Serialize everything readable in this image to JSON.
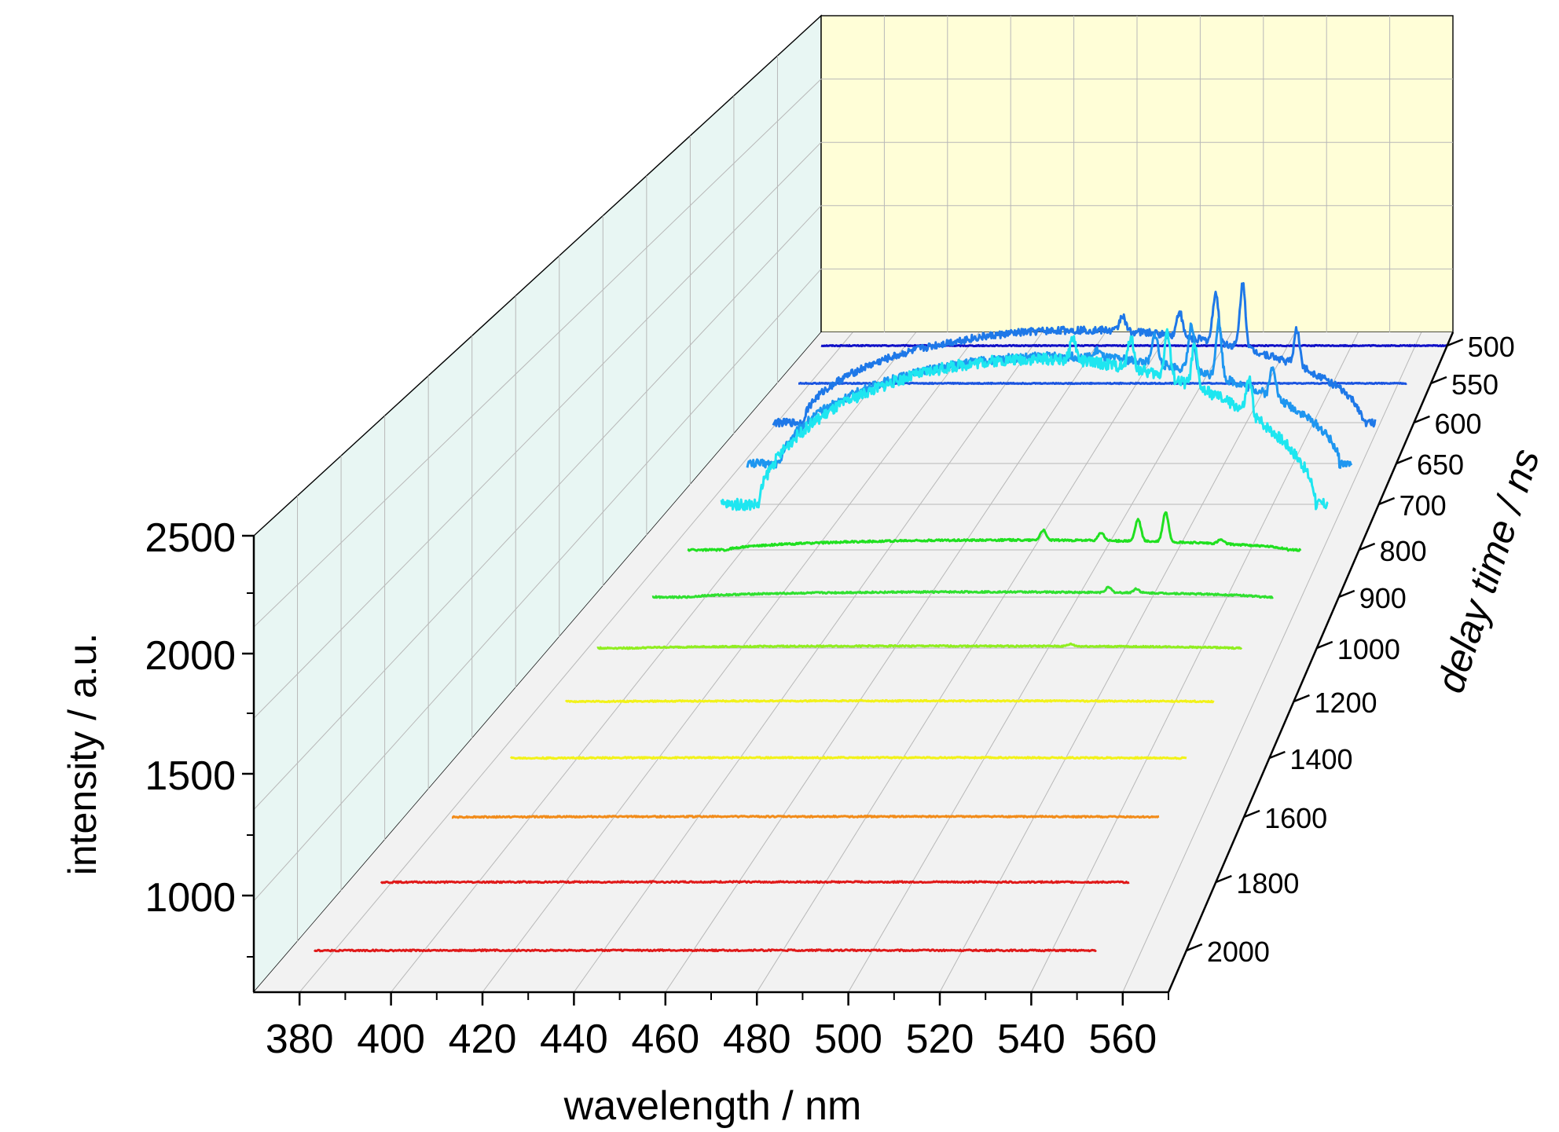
{
  "chart_data": {
    "type": "line",
    "title": "",
    "xlabel": "wavelength / nm",
    "ylabel": "intensity / a.u.",
    "zlabel": "delay time / ns",
    "xlim": [
      370,
      570
    ],
    "ylim": [
      750,
      2500
    ],
    "x_ticks": [
      "380",
      "400",
      "420",
      "440",
      "460",
      "480",
      "500",
      "520",
      "540",
      "560"
    ],
    "y_ticks": [
      "1000",
      "1500",
      "2000",
      "2500"
    ],
    "z_ticks": [
      "500",
      "550",
      "600",
      "650",
      "700",
      "800",
      "900",
      "1000",
      "1200",
      "1400",
      "1600",
      "1800",
      "2000"
    ],
    "grid": true,
    "peaks_nm": [
      486,
      505,
      517,
      526,
      544
    ],
    "series": [
      {
        "delay": "500",
        "color": "#1010c8",
        "start_x": 370,
        "baseline": 790,
        "plateau": 790,
        "peaks": [
          0,
          0,
          0,
          0,
          0
        ]
      },
      {
        "delay": "550",
        "color": "#1b55e0",
        "start_x": 370,
        "baseline": 840,
        "plateau": 840,
        "peaks": [
          0,
          0,
          0,
          0,
          0
        ]
      },
      {
        "delay": "600",
        "color": "#1e78e8",
        "start_x": 372,
        "baseline": 900,
        "plateau": 1420,
        "peaks": [
          90,
          140,
          280,
          360,
          200
        ]
      },
      {
        "delay": "650",
        "color": "#1e96f0",
        "start_x": 373,
        "baseline": 970,
        "plateau": 1550,
        "peaks": [
          40,
          160,
          240,
          300,
          170
        ]
      },
      {
        "delay": "700",
        "color": "#1ee6f0",
        "start_x": 374.5,
        "baseline": 1040,
        "plateau": 1800,
        "peaks": [
          120,
          160,
          240,
          210,
          180
        ]
      },
      {
        "delay": "800",
        "color": "#20e020",
        "start_x": 375,
        "baseline": 1020,
        "plateau": 1070,
        "peaks": [
          50,
          40,
          110,
          150,
          20
        ]
      },
      {
        "delay": "900",
        "color": "#30e030",
        "start_x": 375,
        "baseline": 1020,
        "plateau": 1045,
        "peaks": [
          0,
          0,
          25,
          20,
          0
        ]
      },
      {
        "delay": "1000",
        "color": "#90ee20",
        "start_x": 375,
        "baseline": 1020,
        "plateau": 1030,
        "peaks": [
          0,
          0,
          10,
          0,
          0
        ]
      },
      {
        "delay": "1200",
        "color": "#f2f21a",
        "start_x": 375,
        "baseline": 1020,
        "plateau": 1023,
        "peaks": [
          0,
          0,
          0,
          0,
          0
        ]
      },
      {
        "delay": "1400",
        "color": "#f2f21a",
        "start_x": 375,
        "baseline": 1020,
        "plateau": 1022,
        "peaks": [
          0,
          0,
          0,
          0,
          0
        ]
      },
      {
        "delay": "1600",
        "color": "#f28c1a",
        "start_x": 375,
        "baseline": 1020,
        "plateau": 1022,
        "peaks": [
          0,
          0,
          0,
          0,
          0
        ]
      },
      {
        "delay": "1800",
        "color": "#e01a1a",
        "start_x": 375,
        "baseline": 1020,
        "plateau": 1021,
        "peaks": [
          0,
          0,
          0,
          0,
          0
        ]
      },
      {
        "delay": "2000",
        "color": "#e01a1a",
        "start_x": 375,
        "baseline": 1020,
        "plateau": 1021,
        "peaks": [
          0,
          0,
          0,
          0,
          0
        ]
      }
    ]
  }
}
